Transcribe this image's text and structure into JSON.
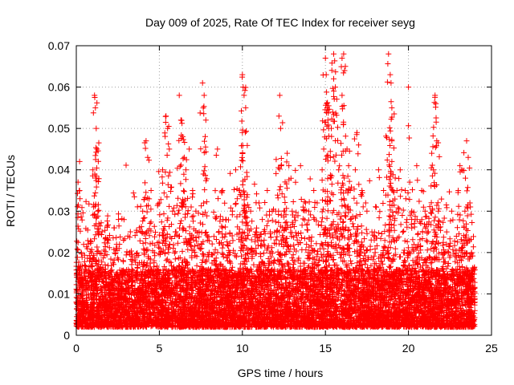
{
  "chart_data": {
    "type": "scatter",
    "title": "Day 009 of 2025, Rate Of TEC Index for receiver seyg",
    "xlabel": "GPS time / hours",
    "ylabel": "ROTI / TECUs",
    "xlim": [
      0,
      25
    ],
    "ylim": [
      0,
      0.07
    ],
    "x_ticks": [
      0,
      5,
      10,
      15,
      20,
      25
    ],
    "x_tick_labels": [
      "0",
      "5",
      "10",
      "15",
      "20",
      "25"
    ],
    "y_ticks": [
      0,
      0.01,
      0.02,
      0.03,
      0.04,
      0.05,
      0.06,
      0.07
    ],
    "y_tick_labels": [
      "0",
      "0.01",
      "0.02",
      "0.03",
      "0.04",
      "0.05",
      "0.06",
      "0.07"
    ],
    "grid": true,
    "marker": "plus",
    "marker_color": "#ff0000",
    "series": [
      {
        "points": [
          [
            0.1,
            0.008
          ],
          [
            0.2,
            0.012
          ],
          [
            0.2,
            0.042
          ],
          [
            0.2,
            0.035
          ],
          [
            0.3,
            0.02
          ],
          [
            0.4,
            0.006
          ],
          [
            0.5,
            0.015
          ],
          [
            0.6,
            0.009
          ],
          [
            0.7,
            0.011
          ],
          [
            0.8,
            0.018
          ],
          [
            0.9,
            0.007
          ],
          [
            1.0,
            0.04
          ],
          [
            1.1,
            0.058
          ],
          [
            1.15,
            0.055
          ],
          [
            1.2,
            0.05
          ],
          [
            1.25,
            0.045
          ],
          [
            1.3,
            0.03
          ],
          [
            1.4,
            0.025
          ],
          [
            1.5,
            0.014
          ],
          [
            1.6,
            0.008
          ],
          [
            1.8,
            0.01
          ],
          [
            2.0,
            0.009
          ],
          [
            2.2,
            0.012
          ],
          [
            2.4,
            0.008
          ],
          [
            2.6,
            0.022
          ],
          [
            2.8,
            0.011
          ],
          [
            3.0,
            0.007
          ],
          [
            3.2,
            0.01
          ],
          [
            3.4,
            0.013
          ],
          [
            3.6,
            0.008
          ],
          [
            3.8,
            0.026
          ],
          [
            4.0,
            0.03
          ],
          [
            4.2,
            0.047
          ],
          [
            4.3,
            0.043
          ],
          [
            4.5,
            0.035
          ],
          [
            4.7,
            0.02
          ],
          [
            4.9,
            0.015
          ],
          [
            5.0,
            0.032
          ],
          [
            5.2,
            0.04
          ],
          [
            5.4,
            0.053
          ],
          [
            5.5,
            0.05
          ],
          [
            5.6,
            0.045
          ],
          [
            5.8,
            0.03
          ],
          [
            6.0,
            0.025
          ],
          [
            6.2,
            0.058
          ],
          [
            6.3,
            0.052
          ],
          [
            6.4,
            0.048
          ],
          [
            6.5,
            0.043
          ],
          [
            6.6,
            0.04
          ],
          [
            6.8,
            0.045
          ],
          [
            7.0,
            0.035
          ],
          [
            7.2,
            0.03
          ],
          [
            7.4,
            0.025
          ],
          [
            7.6,
            0.061
          ],
          [
            7.7,
            0.058
          ],
          [
            7.8,
            0.052
          ],
          [
            8.0,
            0.02
          ],
          [
            8.2,
            0.012
          ],
          [
            8.5,
            0.045
          ],
          [
            8.8,
            0.035
          ],
          [
            9.0,
            0.028
          ],
          [
            9.2,
            0.02
          ],
          [
            9.4,
            0.03
          ],
          [
            9.6,
            0.04
          ],
          [
            9.8,
            0.035
          ],
          [
            10.0,
            0.063
          ],
          [
            10.05,
            0.06
          ],
          [
            10.1,
            0.058
          ],
          [
            10.2,
            0.055
          ],
          [
            10.0,
            0.049
          ],
          [
            10.3,
            0.034
          ],
          [
            10.5,
            0.03
          ],
          [
            10.8,
            0.025
          ],
          [
            11.0,
            0.032
          ],
          [
            11.2,
            0.028
          ],
          [
            11.5,
            0.035
          ],
          [
            11.8,
            0.03
          ],
          [
            12.0,
            0.03
          ],
          [
            12.2,
            0.053
          ],
          [
            12.25,
            0.058
          ],
          [
            12.3,
            0.05
          ],
          [
            12.5,
            0.03
          ],
          [
            12.7,
            0.044
          ],
          [
            12.8,
            0.041
          ],
          [
            13.0,
            0.03
          ],
          [
            13.2,
            0.037
          ],
          [
            13.5,
            0.041
          ],
          [
            13.8,
            0.032
          ],
          [
            14.0,
            0.03
          ],
          [
            14.3,
            0.035
          ],
          [
            14.5,
            0.032
          ],
          [
            14.8,
            0.04
          ],
          [
            14.9,
            0.045
          ],
          [
            15.0,
            0.067
          ],
          [
            15.05,
            0.063
          ],
          [
            15.1,
            0.055
          ],
          [
            15.15,
            0.052
          ],
          [
            15.2,
            0.05
          ],
          [
            15.3,
            0.043
          ],
          [
            15.5,
            0.062
          ],
          [
            15.5,
            0.068
          ],
          [
            15.6,
            0.06
          ],
          [
            15.8,
            0.04
          ],
          [
            16.0,
            0.067
          ],
          [
            16.1,
            0.068
          ],
          [
            16.2,
            0.065
          ],
          [
            16.0,
            0.058
          ],
          [
            16.3,
            0.045
          ],
          [
            16.5,
            0.035
          ],
          [
            16.8,
            0.04
          ],
          [
            16.9,
            0.049
          ],
          [
            17.0,
            0.046
          ],
          [
            17.2,
            0.035
          ],
          [
            17.5,
            0.03
          ],
          [
            17.8,
            0.025
          ],
          [
            18.0,
            0.02
          ],
          [
            18.2,
            0.04
          ],
          [
            18.5,
            0.035
          ],
          [
            18.8,
            0.068
          ],
          [
            18.9,
            0.063
          ],
          [
            18.95,
            0.061
          ],
          [
            19.0,
            0.055
          ],
          [
            19.0,
            0.047
          ],
          [
            19.0,
            0.042
          ],
          [
            19.2,
            0.038
          ],
          [
            19.5,
            0.04
          ],
          [
            19.8,
            0.035
          ],
          [
            20.0,
            0.06
          ],
          [
            20.2,
            0.03
          ],
          [
            20.5,
            0.041
          ],
          [
            20.8,
            0.035
          ],
          [
            21.0,
            0.03
          ],
          [
            21.2,
            0.025
          ],
          [
            21.4,
            0.044
          ],
          [
            21.5,
            0.04
          ],
          [
            21.6,
            0.058
          ],
          [
            21.65,
            0.056
          ],
          [
            21.7,
            0.047
          ],
          [
            21.8,
            0.03
          ],
          [
            22.0,
            0.02
          ],
          [
            22.3,
            0.025
          ],
          [
            22.6,
            0.03
          ],
          [
            23.0,
            0.035
          ],
          [
            23.1,
            0.041
          ],
          [
            23.2,
            0.04
          ],
          [
            23.4,
            0.03
          ],
          [
            23.5,
            0.047
          ],
          [
            23.6,
            0.043
          ],
          [
            23.7,
            0.032
          ],
          [
            23.8,
            0.02
          ],
          [
            23.9,
            0.011
          ],
          [
            24.0,
            0.008
          ]
        ]
      }
    ],
    "density_band": {
      "x_range": [
        0,
        24
      ],
      "y_base_min": 0.002,
      "y_base_max": 0.016,
      "approx_points": 9000
    }
  }
}
